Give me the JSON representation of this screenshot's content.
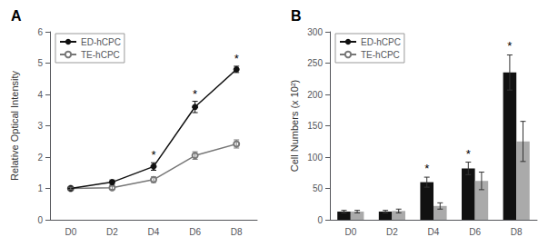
{
  "chart_data": [
    {
      "type": "line",
      "title": "A",
      "ylabel": "Relative Optical Intensity",
      "categories": [
        "D0",
        "D2",
        "D4",
        "D6",
        "D8"
      ],
      "series": [
        {
          "name": "ED-hCPC",
          "color": "#111111",
          "marker": "circle",
          "values": [
            1.0,
            1.2,
            1.7,
            3.6,
            4.8
          ],
          "error": [
            0.04,
            0.07,
            0.12,
            0.18,
            0.1
          ]
        },
        {
          "name": "TE-hCPC",
          "color": "#777777",
          "marker": "emptyCircle",
          "values": [
            1.0,
            1.02,
            1.28,
            2.05,
            2.42
          ],
          "error": [
            0.04,
            0.05,
            0.09,
            0.12,
            0.13
          ]
        }
      ],
      "ylim": [
        0,
        6
      ],
      "yticks": [
        0,
        1,
        2,
        3,
        4,
        5,
        6
      ],
      "grid": false,
      "legend": "upper left",
      "annotations": [
        {
          "x": "D4",
          "y": 1.88,
          "text": "*"
        },
        {
          "x": "D6",
          "y": 3.83,
          "text": "*"
        },
        {
          "x": "D8",
          "y": 4.97,
          "text": "*"
        }
      ]
    },
    {
      "type": "bar",
      "title": "B",
      "ylabel": "Cell Numbers (x 10²)",
      "categories": [
        "D0",
        "D2",
        "D4",
        "D6",
        "D8"
      ],
      "series": [
        {
          "name": "ED-hCPC",
          "color": "#111111",
          "values": [
            13,
            13,
            60,
            82,
            235
          ],
          "error": [
            2,
            2,
            8,
            10,
            28
          ]
        },
        {
          "name": "TE-hCPC",
          "color": "#aaaaaa",
          "values": [
            13,
            14,
            22,
            62,
            125
          ],
          "error": [
            2,
            3,
            5,
            14,
            32
          ]
        }
      ],
      "ylim": [
        0,
        300
      ],
      "yticks": [
        0,
        50,
        100,
        150,
        200,
        250,
        300
      ],
      "grid": false,
      "legend": "upper left",
      "annotations": [
        {
          "x": "D4",
          "y": 73,
          "text": "*",
          "series": "ED-hCPC"
        },
        {
          "x": "D6",
          "y": 96,
          "text": "*",
          "series": "ED-hCPC"
        },
        {
          "x": "D8",
          "y": 268,
          "text": "*",
          "series": "ED-hCPC"
        }
      ]
    }
  ]
}
